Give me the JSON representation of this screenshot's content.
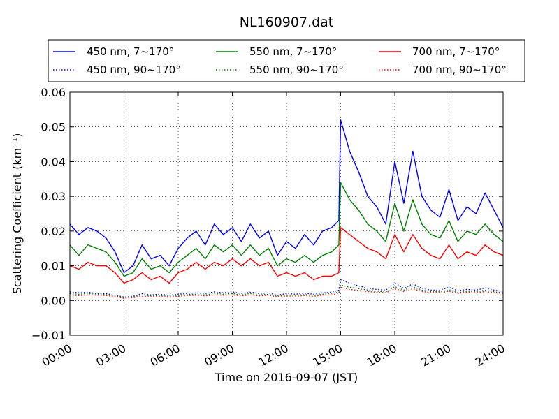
{
  "chart_data": {
    "type": "line",
    "title": "NL160907.dat",
    "xlabel": "Time on 2016-09-07 (JST)",
    "ylabel": "Scattering Coefficient (km⁻¹)",
    "xlim": [
      0,
      24
    ],
    "ylim": [
      -0.01,
      0.06
    ],
    "grid": true,
    "legend_position": "top",
    "x_ticks": [
      "00:00",
      "03:00",
      "06:00",
      "09:00",
      "12:00",
      "15:00",
      "18:00",
      "21:00",
      "24:00"
    ],
    "y_ticks": [
      "−0.01",
      "0.00",
      "0.01",
      "0.02",
      "0.03",
      "0.04",
      "0.05",
      "0.06"
    ],
    "x_hours": [
      0,
      0.5,
      1,
      1.5,
      2,
      2.5,
      3,
      3.5,
      4,
      4.5,
      5,
      5.5,
      6,
      6.5,
      7,
      7.5,
      8,
      8.5,
      9,
      9.5,
      10,
      10.5,
      11,
      11.5,
      12,
      12.5,
      13,
      13.5,
      14,
      14.5,
      14.9,
      15,
      15.5,
      16,
      16.5,
      17,
      17.5,
      18,
      18.5,
      19,
      19.5,
      20,
      20.5,
      21,
      21.5,
      22,
      22.5,
      23,
      23.5,
      24
    ],
    "series": [
      {
        "name": "450 nm, 7∼170°",
        "color": "#0000ff",
        "style": "solid",
        "values": [
          0.022,
          0.019,
          0.021,
          0.02,
          0.018,
          0.014,
          0.008,
          0.01,
          0.016,
          0.012,
          0.013,
          0.01,
          0.015,
          0.018,
          0.02,
          0.016,
          0.022,
          0.019,
          0.021,
          0.017,
          0.022,
          0.018,
          0.02,
          0.013,
          0.017,
          0.015,
          0.019,
          0.016,
          0.02,
          0.021,
          0.023,
          0.052,
          0.043,
          0.037,
          0.03,
          0.027,
          0.022,
          0.04,
          0.028,
          0.043,
          0.03,
          0.026,
          0.024,
          0.032,
          0.023,
          0.027,
          0.025,
          0.031,
          0.026,
          0.021
        ]
      },
      {
        "name": "450 nm, 90∼170°",
        "color": "#0000ff",
        "style": "dotted",
        "values": [
          0.0025,
          0.0022,
          0.0024,
          0.002,
          0.002,
          0.0015,
          0.001,
          0.0012,
          0.002,
          0.0016,
          0.0018,
          0.0015,
          0.0018,
          0.002,
          0.0022,
          0.002,
          0.0025,
          0.0022,
          0.0025,
          0.002,
          0.0024,
          0.002,
          0.0022,
          0.0015,
          0.002,
          0.0018,
          0.0021,
          0.0018,
          0.0022,
          0.0024,
          0.003,
          0.006,
          0.005,
          0.0042,
          0.0035,
          0.0032,
          0.003,
          0.005,
          0.0035,
          0.0048,
          0.0035,
          0.003,
          0.003,
          0.0038,
          0.0028,
          0.0032,
          0.003,
          0.0036,
          0.003,
          0.0026
        ]
      },
      {
        "name": "550 nm, 7∼170°",
        "color": "#008000",
        "style": "solid",
        "values": [
          0.016,
          0.013,
          0.016,
          0.015,
          0.014,
          0.011,
          0.007,
          0.008,
          0.012,
          0.009,
          0.01,
          0.008,
          0.011,
          0.013,
          0.015,
          0.012,
          0.016,
          0.014,
          0.016,
          0.013,
          0.016,
          0.013,
          0.015,
          0.01,
          0.012,
          0.011,
          0.013,
          0.011,
          0.013,
          0.014,
          0.016,
          0.034,
          0.029,
          0.026,
          0.022,
          0.02,
          0.017,
          0.028,
          0.02,
          0.029,
          0.022,
          0.019,
          0.018,
          0.023,
          0.017,
          0.02,
          0.019,
          0.022,
          0.019,
          0.017
        ]
      },
      {
        "name": "550 nm, 90∼170°",
        "color": "#008000",
        "style": "dotted",
        "values": [
          0.002,
          0.0018,
          0.002,
          0.0018,
          0.0017,
          0.0013,
          0.0008,
          0.001,
          0.0016,
          0.0013,
          0.0014,
          0.0012,
          0.0015,
          0.0017,
          0.0018,
          0.0016,
          0.002,
          0.0018,
          0.002,
          0.0016,
          0.002,
          0.0016,
          0.0018,
          0.0012,
          0.0016,
          0.0015,
          0.0017,
          0.0015,
          0.0018,
          0.002,
          0.0025,
          0.0045,
          0.0038,
          0.0034,
          0.003,
          0.0027,
          0.0025,
          0.004,
          0.003,
          0.004,
          0.003,
          0.0026,
          0.0025,
          0.0031,
          0.0023,
          0.0027,
          0.0025,
          0.003,
          0.0025,
          0.0022
        ]
      },
      {
        "name": "700 nm, 7∼170°",
        "color": "#ff0000",
        "style": "solid",
        "values": [
          0.01,
          0.009,
          0.011,
          0.01,
          0.01,
          0.008,
          0.005,
          0.006,
          0.008,
          0.006,
          0.007,
          0.005,
          0.008,
          0.009,
          0.011,
          0.009,
          0.011,
          0.01,
          0.012,
          0.01,
          0.012,
          0.01,
          0.011,
          0.007,
          0.008,
          0.007,
          0.008,
          0.006,
          0.007,
          0.007,
          0.008,
          0.021,
          0.019,
          0.017,
          0.015,
          0.014,
          0.012,
          0.019,
          0.014,
          0.019,
          0.015,
          0.013,
          0.012,
          0.016,
          0.012,
          0.014,
          0.013,
          0.016,
          0.014,
          0.013
        ]
      },
      {
        "name": "700 nm, 90∼170°",
        "color": "#ff0000",
        "style": "dotted",
        "values": [
          0.0016,
          0.0014,
          0.0016,
          0.0015,
          0.0014,
          0.0011,
          0.0006,
          0.0008,
          0.0012,
          0.001,
          0.0011,
          0.0009,
          0.0012,
          0.0014,
          0.0015,
          0.0013,
          0.0016,
          0.0015,
          0.0016,
          0.0013,
          0.0016,
          0.0013,
          0.0015,
          0.001,
          0.0013,
          0.0012,
          0.0014,
          0.0012,
          0.0015,
          0.0016,
          0.002,
          0.0038,
          0.0032,
          0.0029,
          0.0026,
          0.0024,
          0.0022,
          0.0034,
          0.0026,
          0.0034,
          0.0026,
          0.0023,
          0.0022,
          0.0027,
          0.002,
          0.0024,
          0.0022,
          0.0026,
          0.0022,
          0.002
        ]
      }
    ]
  }
}
